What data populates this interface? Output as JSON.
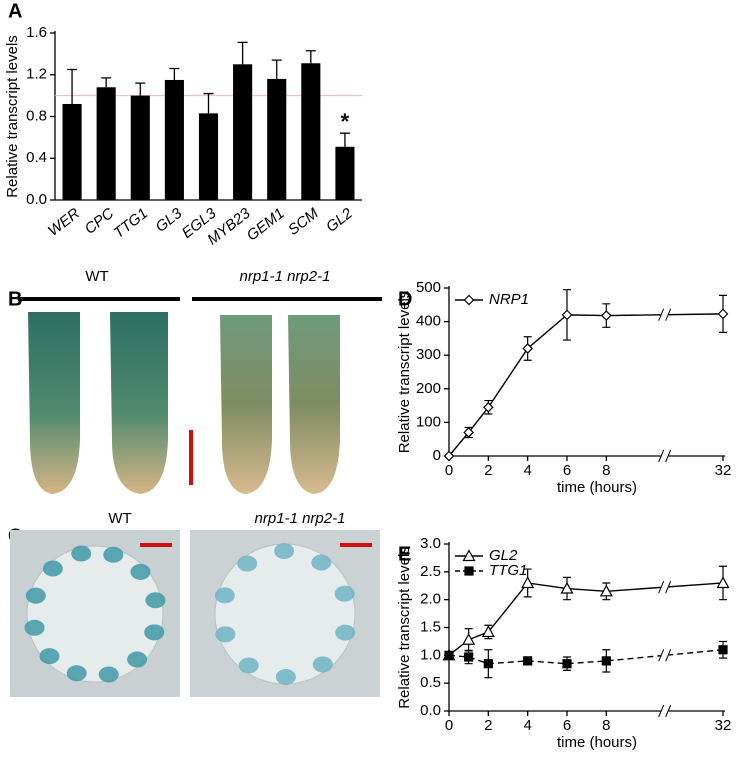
{
  "panel_labels": [
    "A",
    "B",
    "C",
    "D",
    "E"
  ],
  "images": {
    "B": {
      "left_label": "WT",
      "right_label": "nrp1-1 nrp2-1"
    },
    "C": {
      "left_label": "WT",
      "right_label": "nrp1-1 nrp2-1"
    }
  },
  "chart_data": [
    {
      "type": "bar",
      "ylabel": "Relative transcript levels",
      "categories": [
        "WER",
        "CPC",
        "TTG1",
        "GL3",
        "EGL3",
        "MYB23",
        "GEM1",
        "SCM",
        "GL2"
      ],
      "values": [
        0.92,
        1.08,
        1.0,
        1.15,
        0.83,
        1.3,
        1.16,
        1.31,
        0.51
      ],
      "errors": [
        0.33,
        0.09,
        0.12,
        0.11,
        0.19,
        0.21,
        0.18,
        0.12,
        0.13
      ],
      "color": "#000000",
      "ylim": [
        0,
        1.6
      ],
      "yticks": [
        {
          "value": 0,
          "label": "0.0"
        },
        0.4,
        0.8,
        1.2,
        1.6
      ],
      "reference_line": {
        "value": 1,
        "color": "#e8b4c0"
      },
      "annotations": [
        {
          "text": "*",
          "category": "GL2"
        }
      ]
    },
    {
      "type": "line",
      "ylabel": "Relative transcript levels",
      "xlabel": "time (hours)",
      "x": [
        0,
        1,
        2,
        4,
        6,
        8,
        32
      ],
      "series": [
        {
          "name": "NRP1",
          "color": "#000000",
          "marker": "diamond",
          "marker_fill": "#ffffff",
          "linestyle": "solid",
          "values": [
            0,
            70,
            145,
            320,
            420,
            418,
            423
          ],
          "errors": [
            0,
            15,
            20,
            35,
            75,
            35,
            55
          ]
        }
      ],
      "xlim": [
        0,
        32
      ],
      "xticks": [
        0,
        2,
        4,
        6,
        8,
        32
      ],
      "x_break": true,
      "ylim": [
        0,
        500
      ],
      "yticks": [
        0,
        100,
        200,
        300,
        400,
        500
      ],
      "legend": "upper left"
    },
    {
      "type": "line",
      "ylabel": "Relative transcript levels",
      "xlabel": "time (hours)",
      "x": [
        0,
        1,
        2,
        4,
        6,
        8,
        32
      ],
      "series": [
        {
          "name": "GL2",
          "color": "#000000",
          "marker": "triangle",
          "marker_fill": "#ffffff",
          "linestyle": "solid",
          "values": [
            1.0,
            1.28,
            1.42,
            2.3,
            2.2,
            2.15,
            2.3
          ],
          "errors": [
            0.05,
            0.2,
            0.12,
            0.25,
            0.2,
            0.15,
            0.3
          ]
        },
        {
          "name": "TTG1",
          "color": "#000000",
          "marker": "square",
          "marker_fill": "#000000",
          "linestyle": "dashed",
          "values": [
            1.0,
            0.97,
            0.85,
            0.9,
            0.85,
            0.9,
            1.1
          ],
          "errors": [
            0.05,
            0.12,
            0.25,
            0.07,
            0.12,
            0.2,
            0.15
          ]
        }
      ],
      "xlim": [
        0,
        32
      ],
      "xticks": [
        0,
        2,
        4,
        6,
        8,
        32
      ],
      "x_break": true,
      "ylim": [
        0,
        3
      ],
      "yticks": [
        {
          "value": 0,
          "label": "0.0"
        },
        0.5,
        {
          "value": 1,
          "label": "1.0"
        },
        1.5,
        {
          "value": 2,
          "label": "2.0"
        },
        2.5,
        {
          "value": 3,
          "label": "3.0"
        }
      ],
      "legend": "upper left"
    }
  ]
}
